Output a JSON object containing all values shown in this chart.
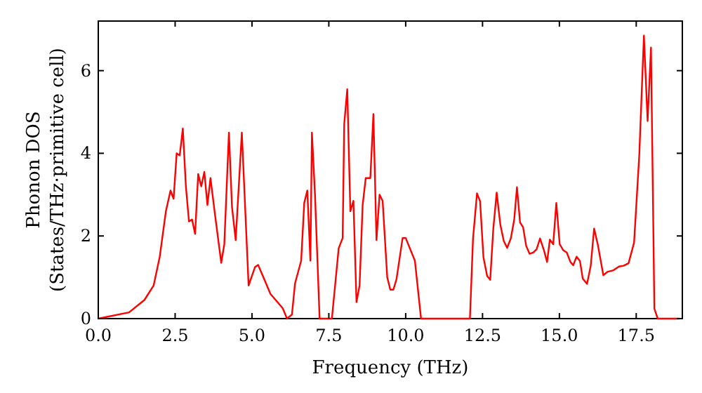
{
  "chart_data": {
    "type": "line",
    "xlabel": "Frequency (THz)",
    "ylabel": "Phonon DOS\n(States/THz·primitive cell)",
    "xlim": [
      0,
      19
    ],
    "ylim": [
      0,
      7.2
    ],
    "xticks": [
      {
        "value": 0,
        "label": "0.0"
      },
      {
        "value": 2.5,
        "label": "2.5"
      },
      {
        "value": 5,
        "label": "5.0"
      },
      {
        "value": 7.5,
        "label": "7.5"
      },
      {
        "value": 10,
        "label": "10.0"
      },
      {
        "value": 12.5,
        "label": "12.5"
      },
      {
        "value": 15,
        "label": "15.0"
      },
      {
        "value": 17.5,
        "label": "17.5"
      }
    ],
    "yticks": [
      0,
      2,
      4,
      6
    ],
    "grid": false,
    "line_style": "solid",
    "marker": "none",
    "series": [
      {
        "color": "#ff0000",
        "x": [
          0,
          1,
          1.5,
          1.8,
          2.0,
          2.2,
          2.35,
          2.45,
          2.55,
          2.65,
          2.75,
          2.85,
          2.95,
          3.05,
          3.15,
          3.25,
          3.35,
          3.45,
          3.55,
          3.65,
          3.8,
          4.0,
          4.1,
          4.25,
          4.35,
          4.47,
          4.67,
          4.89,
          5.1,
          5.2,
          5.4,
          5.6,
          6.0,
          6.14,
          6.3,
          6.4,
          6.6,
          6.7,
          6.8,
          6.9,
          6.95,
          7.05,
          7.2,
          7.6,
          7.82,
          7.95,
          8.0,
          8.1,
          8.2,
          8.3,
          8.4,
          8.5,
          8.6,
          8.7,
          8.85,
          8.95,
          9.05,
          9.15,
          9.25,
          9.4,
          9.5,
          9.6,
          9.7,
          9.9,
          10.0,
          10.3,
          10.5,
          12.09,
          12.19,
          12.32,
          12.42,
          12.53,
          12.65,
          12.75,
          12.85,
          12.96,
          13.08,
          13.19,
          13.3,
          13.42,
          13.53,
          13.62,
          13.72,
          13.82,
          13.92,
          14.03,
          14.15,
          14.26,
          14.37,
          14.5,
          14.6,
          14.69,
          14.8,
          14.9,
          15.01,
          15.13,
          15.24,
          15.36,
          15.45,
          15.56,
          15.67,
          15.76,
          15.9,
          16.02,
          16.13,
          16.25,
          16.43,
          16.56,
          16.76,
          16.94,
          17.09,
          17.25,
          17.43,
          17.6,
          17.75,
          17.87,
          17.98,
          18.09,
          18.2,
          18.9
        ],
        "values": [
          0,
          0.15,
          0.45,
          0.8,
          1.5,
          2.6,
          3.1,
          2.9,
          4.0,
          3.95,
          4.6,
          3.2,
          2.35,
          2.4,
          2.05,
          3.5,
          3.2,
          3.55,
          2.75,
          3.4,
          2.5,
          1.35,
          1.8,
          4.5,
          2.7,
          1.9,
          4.5,
          0.8,
          1.25,
          1.3,
          0.95,
          0.6,
          0.25,
          0,
          0.1,
          0.85,
          1.4,
          2.8,
          3.1,
          1.4,
          4.5,
          3.0,
          0,
          0,
          1.7,
          1.95,
          4.7,
          5.55,
          2.6,
          2.85,
          0.4,
          0.8,
          2.75,
          3.4,
          3.4,
          4.95,
          1.9,
          3.0,
          2.85,
          1.0,
          0.7,
          0.7,
          0.95,
          1.95,
          1.95,
          1.4,
          0,
          0,
          1.93,
          3.03,
          2.84,
          1.48,
          1.03,
          0.94,
          2.17,
          3.05,
          2.27,
          1.88,
          1.71,
          1.94,
          2.39,
          3.18,
          2.33,
          2.21,
          1.76,
          1.57,
          1.6,
          1.68,
          1.94,
          1.65,
          1.37,
          1.91,
          1.8,
          2.8,
          1.8,
          1.65,
          1.6,
          1.37,
          1.29,
          1.5,
          1.39,
          0.97,
          0.84,
          1.28,
          2.18,
          1.79,
          1.05,
          1.13,
          1.17,
          1.26,
          1.28,
          1.34,
          1.84,
          3.97,
          6.85,
          4.78,
          6.56,
          0.24,
          0,
          0
        ]
      }
    ]
  }
}
